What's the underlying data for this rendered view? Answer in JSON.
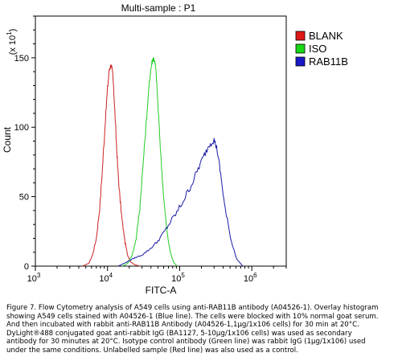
{
  "chart_data": {
    "type": "line",
    "title": "Multi-sample : P1",
    "xlabel": "FITC-A",
    "ylabel": "Count",
    "y_scale_label": "(x 10",
    "y_scale_exp": "1",
    "y_scale_close": ")",
    "x_scale": "log",
    "xlim": [
      1000,
      3000000
    ],
    "ylim": [
      0,
      180
    ],
    "x_ticks": [
      {
        "base": "10",
        "exp": "3",
        "value": 1000
      },
      {
        "base": "10",
        "exp": "4",
        "value": 10000
      },
      {
        "base": "10",
        "exp": "5",
        "value": 100000
      },
      {
        "base": "10",
        "exp": "6",
        "value": 1000000
      }
    ],
    "y_ticks": [
      0,
      50,
      100,
      150
    ],
    "grid": false,
    "legend_position": "right",
    "series": [
      {
        "name": "BLANK",
        "color": "#cc2222",
        "x": [
          4500,
          5500,
          6200,
          7000,
          7800,
          8500,
          9200,
          10000,
          10600,
          11200,
          11800,
          12400,
          13000,
          13800,
          14800,
          16000,
          17500,
          19000,
          21000,
          24000,
          28000
        ],
        "y": [
          0,
          2,
          8,
          20,
          42,
          70,
          100,
          128,
          142,
          145,
          138,
          120,
          98,
          72,
          50,
          32,
          17,
          8,
          3,
          1,
          0
        ]
      },
      {
        "name": "ISO",
        "color": "#22cc22",
        "x": [
          16000,
          19000,
          22000,
          25000,
          28000,
          31000,
          34000,
          37000,
          39000,
          41000,
          43000,
          45000,
          47000,
          49000,
          52000,
          56000,
          61000,
          67000,
          74000,
          82000,
          92000
        ],
        "y": [
          0,
          2,
          8,
          20,
          42,
          72,
          100,
          125,
          138,
          146,
          150,
          148,
          140,
          124,
          100,
          72,
          45,
          24,
          10,
          3,
          0
        ]
      },
      {
        "name": "RAB11B",
        "color": "#1a1aa8",
        "x": [
          14000,
          17000,
          20000,
          24000,
          30000,
          38000,
          48000,
          60000,
          75000,
          95000,
          120000,
          150000,
          180000,
          220000,
          260000,
          300000,
          330000,
          370000,
          430000,
          520000,
          620000,
          750000
        ],
        "y": [
          0,
          2,
          4,
          6,
          8,
          12,
          17,
          24,
          32,
          40,
          50,
          60,
          70,
          80,
          88,
          91,
          84,
          66,
          40,
          18,
          5,
          0
        ]
      }
    ]
  },
  "caption": "Figure 7. Flow Cytometry analysis of A549 cells using anti-RAB11B antibody (A04526-1). Overlay histogram showing A549 cells stained with A04526-1 (Blue line). The cells were blocked with 10% normal goat serum. And then incubated with rabbit anti-RAB11B Antibody (A04526-1,1µg/1x106 cells) for 30 min at 20°C. DyLight®488 conjugated goat anti-rabbit IgG (BA1127, 5-10µg/1x106 cells) was used as secondary antibody for 30 minutes at 20°C. Isotype control antibody (Green line) was rabbit IgG (1µg/1x106) used under the same conditions. Unlabelled sample (Red line) was also used as a control."
}
